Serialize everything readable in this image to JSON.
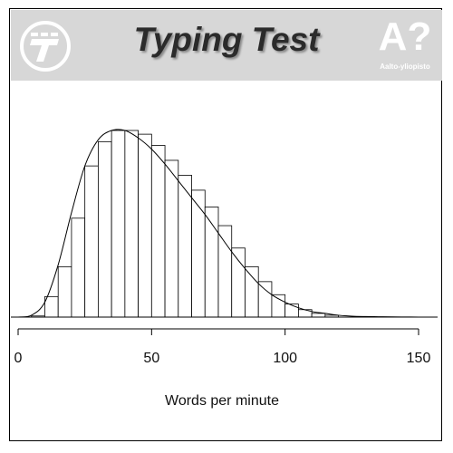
{
  "header": {
    "title": "Typing Test",
    "logo_right_mark": "A?",
    "logo_right_name": "Aalto-yliopisto",
    "logo_left_icon": "typing-test-logo",
    "banner_color": "#d7d7d7"
  },
  "chart_data": {
    "type": "bar",
    "title": "Typing Test",
    "xlabel": "Words per minute",
    "ylabel": "",
    "xlim": [
      0,
      150
    ],
    "xticks": [
      0,
      50,
      100,
      150
    ],
    "bin_width": 5,
    "bins": [
      {
        "start": 5,
        "end": 10,
        "value": 0.006
      },
      {
        "start": 10,
        "end": 15,
        "value": 0.11
      },
      {
        "start": 15,
        "end": 20,
        "value": 0.27
      },
      {
        "start": 20,
        "end": 25,
        "value": 0.53
      },
      {
        "start": 25,
        "end": 30,
        "value": 0.81
      },
      {
        "start": 30,
        "end": 35,
        "value": 0.94
      },
      {
        "start": 35,
        "end": 40,
        "value": 1.0
      },
      {
        "start": 40,
        "end": 45,
        "value": 1.0
      },
      {
        "start": 45,
        "end": 50,
        "value": 0.98
      },
      {
        "start": 50,
        "end": 55,
        "value": 0.92
      },
      {
        "start": 55,
        "end": 60,
        "value": 0.84
      },
      {
        "start": 60,
        "end": 65,
        "value": 0.76
      },
      {
        "start": 65,
        "end": 70,
        "value": 0.68
      },
      {
        "start": 70,
        "end": 75,
        "value": 0.59
      },
      {
        "start": 75,
        "end": 80,
        "value": 0.49
      },
      {
        "start": 80,
        "end": 85,
        "value": 0.37
      },
      {
        "start": 85,
        "end": 90,
        "value": 0.27
      },
      {
        "start": 90,
        "end": 95,
        "value": 0.19
      },
      {
        "start": 95,
        "end": 100,
        "value": 0.12
      },
      {
        "start": 100,
        "end": 105,
        "value": 0.07
      },
      {
        "start": 105,
        "end": 110,
        "value": 0.04
      },
      {
        "start": 110,
        "end": 115,
        "value": 0.02
      },
      {
        "start": 115,
        "end": 120,
        "value": 0.01
      }
    ],
    "density_curve": {
      "x": [
        0,
        5,
        10,
        15,
        20,
        25,
        30,
        35,
        40,
        45,
        50,
        55,
        60,
        65,
        70,
        75,
        80,
        85,
        90,
        95,
        100,
        105,
        110,
        115,
        120,
        125,
        130,
        135,
        140,
        145,
        150
      ],
      "y": [
        0,
        0.01,
        0.08,
        0.28,
        0.56,
        0.81,
        0.95,
        1.0,
        1.0,
        0.96,
        0.9,
        0.82,
        0.73,
        0.64,
        0.55,
        0.45,
        0.35,
        0.26,
        0.18,
        0.12,
        0.08,
        0.05,
        0.03,
        0.02,
        0.01,
        0.005,
        0.003,
        0.002,
        0.001,
        0.0005,
        0
      ]
    },
    "grid": false,
    "legend": "none"
  }
}
